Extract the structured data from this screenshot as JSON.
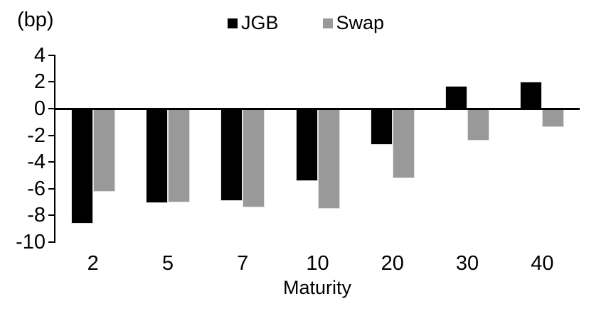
{
  "chart_data": {
    "type": "bar",
    "title": "",
    "unit_label": "(bp)",
    "xlabel": "Maturity",
    "categories": [
      "2",
      "5",
      "7",
      "10",
      "20",
      "30",
      "40"
    ],
    "series": [
      {
        "name": "JGB",
        "color": "#000000",
        "values": [
          -8.6,
          -7.1,
          -6.9,
          -5.4,
          -2.7,
          1.7,
          2.0
        ]
      },
      {
        "name": "Swap",
        "color": "#999999",
        "values": [
          -6.2,
          -7.0,
          -7.4,
          -7.5,
          -5.2,
          -2.4,
          -1.4
        ]
      }
    ],
    "ylim": [
      -10,
      4
    ],
    "ytick_step": 2,
    "yticks": [
      "4",
      "2",
      "0",
      "-2",
      "-4",
      "-6",
      "-8",
      "-10"
    ],
    "grid": false,
    "legend_position": "top-center",
    "background": "#ffffff",
    "bar_border_color": "#e0e0e0",
    "axis_color": "#000000"
  }
}
